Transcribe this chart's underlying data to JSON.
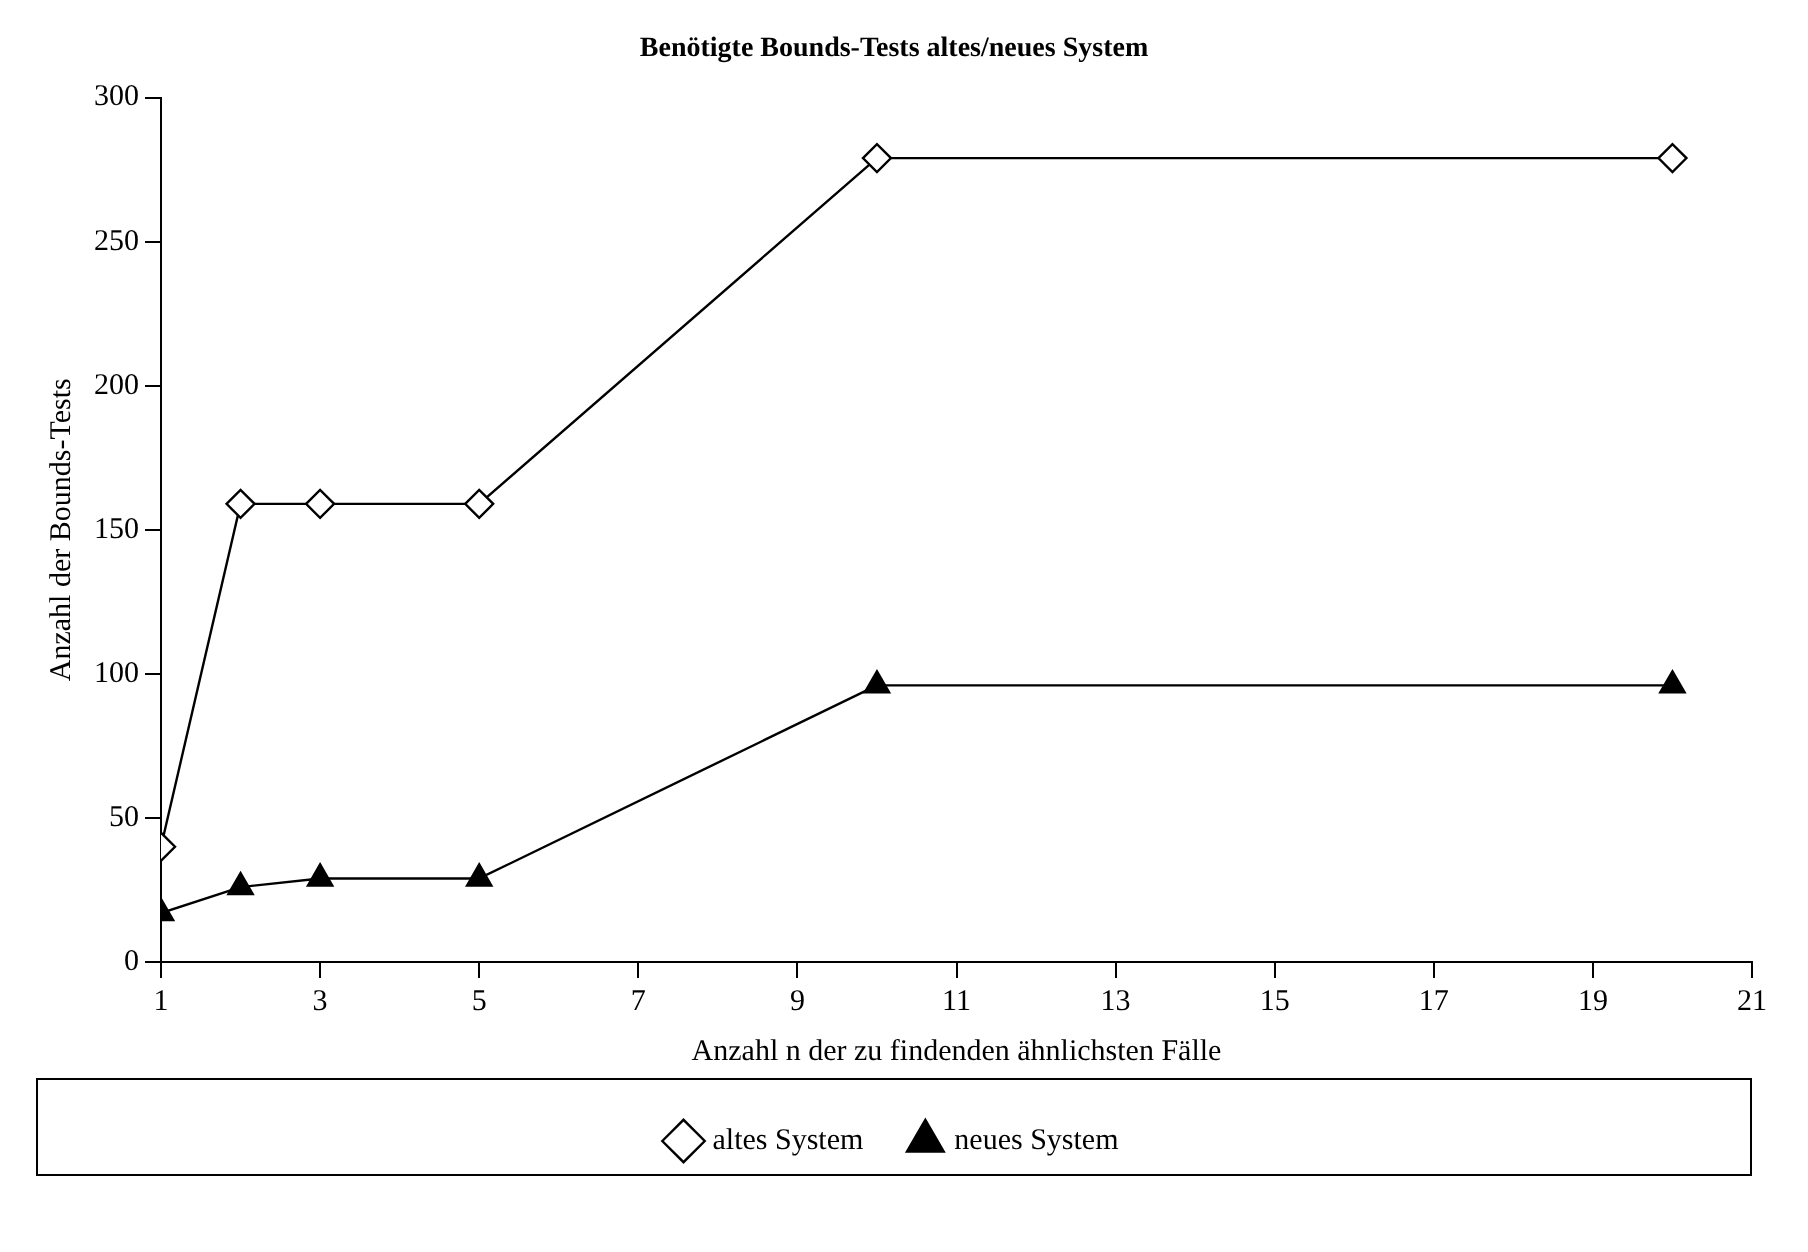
{
  "chart_data": {
    "type": "line",
    "title": "Benötigte Bounds-Tests altes/neues System",
    "xlabel": "Anzahl n der zu findenden ähnlichsten Fälle",
    "ylabel": "Anzahl der Bounds-Tests",
    "x": [
      1,
      2,
      3,
      5,
      10,
      20
    ],
    "series": [
      {
        "name": "altes System",
        "color": "#000000",
        "marker": "diamond",
        "values": [
          40,
          159,
          159,
          159,
          279,
          279
        ]
      },
      {
        "name": "neues System",
        "color": "#000000",
        "marker": "triangle",
        "values": [
          17,
          26,
          29,
          29,
          96,
          96
        ]
      }
    ],
    "xlim": [
      1,
      21
    ],
    "xticks": [
      1,
      3,
      5,
      7,
      9,
      11,
      13,
      15,
      17,
      19,
      21
    ],
    "ylim": [
      0,
      300
    ],
    "yticks": [
      0,
      50,
      100,
      150,
      200,
      250,
      300
    ],
    "grid": false,
    "legend": "bottom",
    "line_style": "solid"
  }
}
